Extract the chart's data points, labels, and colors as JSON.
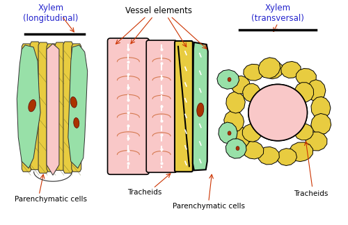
{
  "bg_color": "#ffffff",
  "label_color_blue": "#2222cc",
  "label_color_black": "#000000",
  "arrow_color": "#cc3300",
  "colors": {
    "pink": "#f9c0c0",
    "light_pink": "#f9c8c8",
    "yellow": "#e8cc40",
    "green": "#98e0a8",
    "brown_red": "#aa3300",
    "orange_red": "#cc6633"
  },
  "texts": {
    "xylem_long": "Xylem\n(longitudinal)",
    "xylem_trans": "Xylem\n(transversal)",
    "vessel_elements": "Vessel elements",
    "parenchymatic1": "Parenchymatic cells",
    "tracheids1": "Tracheids",
    "parenchymatic2": "Parenchymatic cells",
    "tracheids2": "Tracheids"
  }
}
